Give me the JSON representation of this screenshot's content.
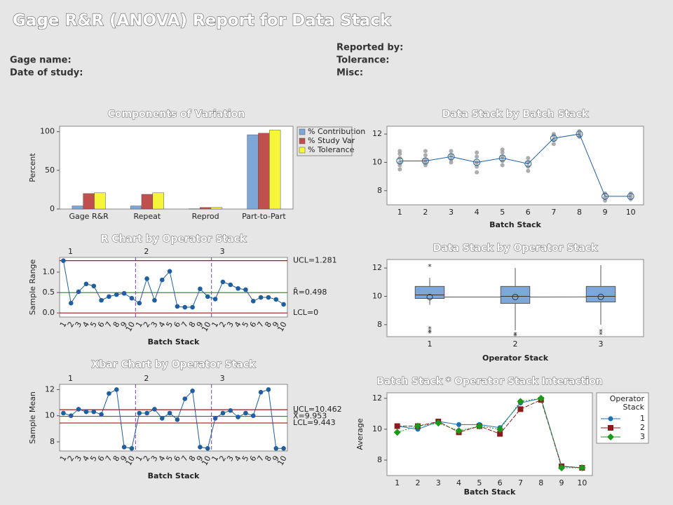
{
  "header": {
    "title": "Gage R&R (ANOVA) Report for Data Stack",
    "fields_left": [
      "Gage name:",
      "Date of study:"
    ],
    "fields_right": [
      "Reported by:",
      "Tolerance:",
      "Misc:"
    ]
  },
  "chart_data": [
    {
      "type": "bar",
      "title": "Components of Variation",
      "ylabel": "Percent",
      "categories": [
        "Gage R&R",
        "Repeat",
        "Reprod",
        "Part-to-Part"
      ],
      "series": [
        {
          "name": "% Contribution",
          "color": "#7da7d9",
          "values": [
            4,
            4,
            0.3,
            96
          ]
        },
        {
          "name": "% Study Var",
          "color": "#c0504d",
          "values": [
            20,
            19,
            2,
            98
          ]
        },
        {
          "name": "% Tolerance",
          "color": "#f5f53a",
          "values": [
            21,
            21,
            2,
            102
          ]
        }
      ],
      "ylim": [
        0,
        107
      ],
      "yticks": [
        0,
        50,
        100
      ]
    },
    {
      "type": "control",
      "title": "R Chart by Operator Stack",
      "xlabel": "Batch Stack",
      "ylabel": "Sample Range",
      "groups": [
        "1",
        "2",
        "3"
      ],
      "categories": [
        "1",
        "2",
        "3",
        "4",
        "5",
        "6",
        "7",
        "8",
        "9",
        "10",
        "1",
        "2",
        "3",
        "4",
        "5",
        "6",
        "7",
        "8",
        "9",
        "10",
        "1",
        "2",
        "3",
        "4",
        "5",
        "6",
        "7",
        "8",
        "9",
        "10"
      ],
      "values": [
        1.28,
        0.24,
        0.52,
        0.71,
        0.66,
        0.31,
        0.4,
        0.45,
        0.48,
        0.36,
        0.24,
        0.84,
        0.31,
        0.81,
        1.02,
        0.16,
        0.14,
        0.14,
        0.59,
        0.4,
        0.34,
        0.76,
        0.69,
        0.6,
        0.57,
        0.29,
        0.38,
        0.38,
        0.33,
        0.21
      ],
      "color": "#1f5fa0",
      "limits": [
        {
          "label": "UCL=1.281",
          "value": 1.281,
          "color": "#a01818"
        },
        {
          "label": "R̄=0.498",
          "value": 0.498,
          "color": "#1a8a1a"
        },
        {
          "label": "LCL=0",
          "value": 0,
          "color": "#a01818"
        }
      ],
      "ylim": [
        -0.1,
        1.36
      ],
      "yticks": [
        {
          "value": 0,
          "label": "0.0"
        },
        {
          "value": 0.5,
          "label": "0.5"
        },
        {
          "value": 1,
          "label": "1.0"
        }
      ]
    },
    {
      "type": "control",
      "title": "Xbar Chart by Operator Stack",
      "xlabel": "Batch Stack",
      "ylabel": "Sample Mean",
      "groups": [
        "1",
        "2",
        "3"
      ],
      "categories": [
        "1",
        "2",
        "3",
        "4",
        "5",
        "6",
        "7",
        "8",
        "9",
        "10",
        "1",
        "2",
        "3",
        "4",
        "5",
        "6",
        "7",
        "8",
        "9",
        "10",
        "1",
        "2",
        "3",
        "4",
        "5",
        "6",
        "7",
        "8",
        "9",
        "10"
      ],
      "values": [
        10.2,
        10.0,
        10.5,
        10.3,
        10.3,
        10.1,
        11.7,
        12.0,
        7.6,
        7.5,
        10.2,
        10.2,
        10.5,
        9.8,
        10.2,
        9.7,
        11.3,
        11.9,
        7.6,
        7.5,
        9.8,
        10.2,
        10.4,
        9.9,
        10.2,
        10.0,
        11.8,
        12.0,
        7.5,
        7.5
      ],
      "color": "#1f5fa0",
      "limits": [
        {
          "label": "UCL=10.462",
          "value": 10.462,
          "color": "#a01818"
        },
        {
          "label": "X̿=9.953",
          "value": 9.953,
          "color": "#1a8a1a"
        },
        {
          "label": "LCL=9.443",
          "value": 9.443,
          "color": "#a01818"
        }
      ],
      "ylim": [
        7.3,
        12.4
      ],
      "yticks": [
        8,
        10,
        12
      ]
    },
    {
      "type": "dot_mean",
      "title": "Data Stack by Batch Stack",
      "xlabel": "Batch Stack",
      "categories": [
        "1",
        "2",
        "3",
        "4",
        "5",
        "6",
        "7",
        "8",
        "9",
        "10"
      ],
      "observations": [
        [
          9.5,
          9.8,
          10.0,
          10.3,
          10.6,
          10.8
        ],
        [
          9.8,
          10.0,
          10.2,
          10.5,
          10.8
        ],
        [
          10.0,
          10.2,
          10.5,
          10.8
        ],
        [
          9.3,
          9.7,
          10.0,
          10.4,
          10.7
        ],
        [
          9.8,
          10.1,
          10.4,
          10.7,
          10.9
        ],
        [
          9.4,
          9.7,
          10.0,
          10.3
        ],
        [
          11.3,
          11.6,
          11.9,
          12.0
        ],
        [
          11.8,
          12.0,
          12.2
        ],
        [
          7.3,
          7.5,
          7.8
        ],
        [
          7.4,
          7.6,
          7.8
        ]
      ],
      "means": [
        10.1,
        10.1,
        10.4,
        10.0,
        10.3,
        9.9,
        11.7,
        12.0,
        7.6,
        7.6
      ],
      "color": "#1f5fa0",
      "point_color": "#999999",
      "ylim": [
        7.0,
        12.55
      ],
      "yticks": [
        8,
        10,
        12
      ]
    },
    {
      "type": "box",
      "title": "Data Stack by Operator Stack",
      "xlabel": "Operator Stack",
      "categories": [
        "1",
        "2",
        "3"
      ],
      "color": "#7da7d9",
      "boxes": [
        {
          "whisker_low": 9.4,
          "q1": 9.85,
          "median": 10.1,
          "q3": 10.7,
          "whisker_high": 11.3,
          "mean": 9.95,
          "outliers": [
            12.2,
            7.8,
            7.6,
            7.5
          ]
        },
        {
          "whisker_low": 7.6,
          "q1": 9.5,
          "median": 10.0,
          "q3": 10.7,
          "whisker_high": 12.0,
          "mean": 9.95,
          "outliers": [
            7.4,
            7.3
          ]
        },
        {
          "whisker_low": 8.0,
          "q1": 9.6,
          "median": 10.0,
          "q3": 10.7,
          "whisker_high": 12.2,
          "mean": 9.96,
          "outliers": [
            7.6,
            7.4
          ]
        }
      ],
      "ylim": [
        7.15,
        12.6
      ],
      "yticks": [
        8,
        10,
        12
      ]
    },
    {
      "type": "line",
      "title": "Batch Stack * Operator Stack Interaction",
      "xlabel": "Batch Stack",
      "ylabel": "Average",
      "legend_title": [
        "Operator",
        "Stack"
      ],
      "categories": [
        "1",
        "2",
        "3",
        "4",
        "5",
        "6",
        "7",
        "8",
        "9",
        "10"
      ],
      "series": [
        {
          "name": "1",
          "color": "#1f6fb4",
          "marker": "circle",
          "values": [
            10.2,
            10.0,
            10.5,
            10.3,
            10.3,
            10.1,
            11.7,
            12.0,
            7.6,
            7.5
          ]
        },
        {
          "name": "2",
          "color": "#8b1a1a",
          "marker": "square",
          "values": [
            10.2,
            10.2,
            10.5,
            9.8,
            10.2,
            9.7,
            11.3,
            11.9,
            7.6,
            7.5
          ]
        },
        {
          "name": "3",
          "color": "#1a9a1a",
          "marker": "diamond",
          "values": [
            9.8,
            10.2,
            10.4,
            9.9,
            10.2,
            10.0,
            11.8,
            12.0,
            7.5,
            7.5
          ]
        }
      ],
      "ylim": [
        7.0,
        12.36
      ],
      "yticks": [
        8,
        10,
        12
      ]
    }
  ]
}
